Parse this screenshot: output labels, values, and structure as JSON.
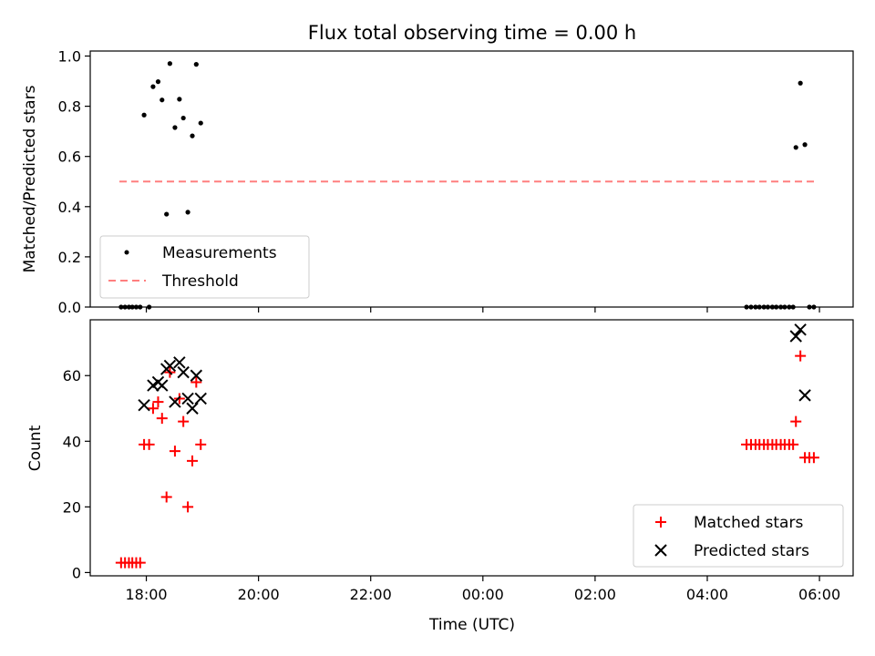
{
  "chart_data": [
    {
      "type": "scatter",
      "title": "Flux total observing time = 0.00 h",
      "xlabel": "",
      "ylabel": "Matched/Predicted stars",
      "xlim": [
        -7.0,
        6.6
      ],
      "ylim": [
        0.0,
        1.02
      ],
      "yticks": [
        0.0,
        0.2,
        0.4,
        0.6,
        0.8,
        1.0
      ],
      "ytick_labels": [
        "0.0",
        "0.2",
        "0.4",
        "0.6",
        "0.8",
        "1.0"
      ],
      "xticks": [
        -6,
        -4,
        -2,
        0,
        2,
        4,
        6
      ],
      "grid": false,
      "legend_position": "lower-left",
      "series": [
        {
          "name": "Measurements",
          "marker": "dot",
          "color": "#000000",
          "points": [
            [
              -6.45,
              0.0
            ],
            [
              -6.38,
              0.0
            ],
            [
              -6.31,
              0.0
            ],
            [
              -6.25,
              0.0
            ],
            [
              -6.18,
              0.0
            ],
            [
              -6.11,
              0.0
            ],
            [
              -6.04,
              0.765
            ],
            [
              -5.95,
              0.0
            ],
            [
              -5.88,
              0.878
            ],
            [
              -5.79,
              0.898
            ],
            [
              -5.72,
              0.825
            ],
            [
              -5.64,
              0.37
            ],
            [
              -5.58,
              0.97
            ],
            [
              -5.49,
              0.715
            ],
            [
              -5.41,
              0.828
            ],
            [
              -5.34,
              0.753
            ],
            [
              -5.26,
              0.378
            ],
            [
              -5.18,
              0.682
            ],
            [
              -5.11,
              0.967
            ],
            [
              -5.03,
              0.733
            ],
            [
              4.7,
              0.0
            ],
            [
              4.78,
              0.0
            ],
            [
              4.86,
              0.0
            ],
            [
              4.93,
              0.0
            ],
            [
              5.01,
              0.0
            ],
            [
              5.08,
              0.0
            ],
            [
              5.16,
              0.0
            ],
            [
              5.23,
              0.0
            ],
            [
              5.31,
              0.0
            ],
            [
              5.38,
              0.0
            ],
            [
              5.46,
              0.0
            ],
            [
              5.53,
              0.0
            ],
            [
              5.58,
              0.636
            ],
            [
              5.66,
              0.892
            ],
            [
              5.74,
              0.647
            ],
            [
              5.82,
              0.0
            ],
            [
              5.9,
              0.0
            ]
          ]
        },
        {
          "name": "Threshold",
          "type": "line",
          "style": "dashed",
          "color": "#ff7f7f",
          "points": [
            [
              -6.48,
              0.5
            ],
            [
              5.92,
              0.5
            ]
          ]
        }
      ]
    },
    {
      "type": "scatter",
      "title": "",
      "xlabel": "Time (UTC)",
      "ylabel": "Count",
      "xlim": [
        -7.0,
        6.6
      ],
      "ylim": [
        -1.0,
        77.0
      ],
      "yticks": [
        0,
        20,
        40,
        60
      ],
      "ytick_labels": [
        "0",
        "20",
        "40",
        "60"
      ],
      "xticks": [
        -6,
        -4,
        -2,
        0,
        2,
        4,
        6
      ],
      "xtick_labels": [
        "18:00",
        "20:00",
        "22:00",
        "00:00",
        "02:00",
        "04:00",
        "06:00"
      ],
      "grid": false,
      "legend_position": "lower-right",
      "series": [
        {
          "name": "Matched stars",
          "marker": "plus",
          "color": "#ff0000",
          "points": [
            [
              -6.45,
              3
            ],
            [
              -6.38,
              3
            ],
            [
              -6.31,
              3
            ],
            [
              -6.25,
              3
            ],
            [
              -6.18,
              3
            ],
            [
              -6.11,
              3
            ],
            [
              -6.04,
              39
            ],
            [
              -5.95,
              39
            ],
            [
              -5.88,
              50
            ],
            [
              -5.79,
              52
            ],
            [
              -5.72,
              47
            ],
            [
              -5.64,
              23
            ],
            [
              -5.58,
              61
            ],
            [
              -5.49,
              37
            ],
            [
              -5.41,
              53
            ],
            [
              -5.34,
              46
            ],
            [
              -5.26,
              20
            ],
            [
              -5.18,
              34
            ],
            [
              -5.11,
              58
            ],
            [
              -5.03,
              39
            ],
            [
              4.7,
              39
            ],
            [
              4.78,
              39
            ],
            [
              4.86,
              39
            ],
            [
              4.93,
              39
            ],
            [
              5.01,
              39
            ],
            [
              5.08,
              39
            ],
            [
              5.16,
              39
            ],
            [
              5.23,
              39
            ],
            [
              5.31,
              39
            ],
            [
              5.38,
              39
            ],
            [
              5.46,
              39
            ],
            [
              5.53,
              39
            ],
            [
              5.58,
              46
            ],
            [
              5.66,
              66
            ],
            [
              5.74,
              35
            ],
            [
              5.82,
              35
            ],
            [
              5.9,
              35
            ]
          ]
        },
        {
          "name": "Predicted stars",
          "marker": "x",
          "color": "#000000",
          "points": [
            [
              -6.04,
              51
            ],
            [
              -5.88,
              57
            ],
            [
              -5.79,
              58
            ],
            [
              -5.72,
              57
            ],
            [
              -5.64,
              62
            ],
            [
              -5.58,
              63
            ],
            [
              -5.49,
              52
            ],
            [
              -5.41,
              64
            ],
            [
              -5.34,
              61
            ],
            [
              -5.26,
              53
            ],
            [
              -5.18,
              50
            ],
            [
              -5.11,
              60
            ],
            [
              -5.03,
              53
            ],
            [
              5.58,
              72
            ],
            [
              5.66,
              74
            ],
            [
              5.74,
              54
            ]
          ]
        }
      ]
    }
  ]
}
